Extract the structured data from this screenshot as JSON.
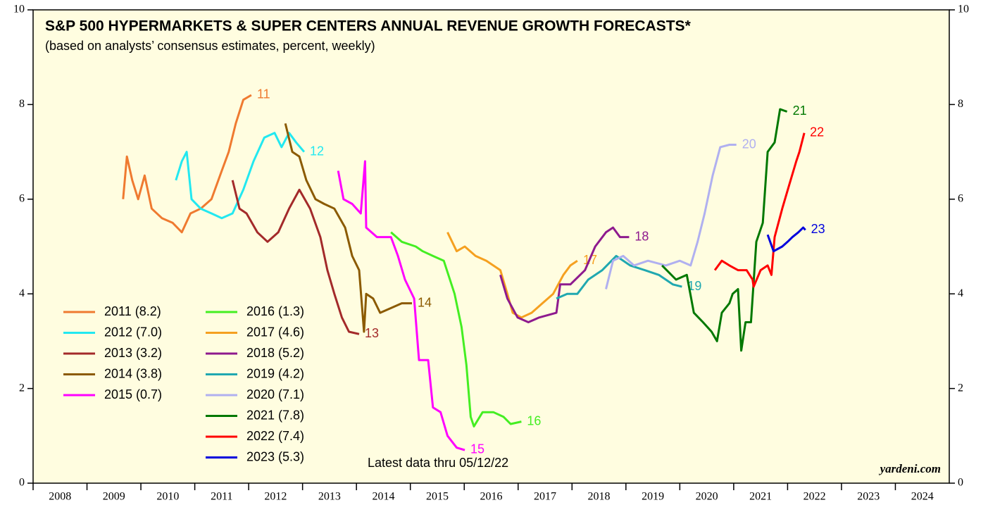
{
  "chart_data": {
    "type": "line",
    "title": "S&P 500 HYPERMARKETS & SUPER CENTERS ANNUAL REVENUE GROWTH FORECASTS*",
    "subtitle": "(based on analysts’ consensus estimates, percent, weekly)",
    "note": "Latest data thru  05/12/22",
    "source": "yardeni.com",
    "xlim": [
      2008,
      2025
    ],
    "xticks": [
      2008,
      2009,
      2010,
      2011,
      2012,
      2013,
      2014,
      2015,
      2016,
      2017,
      2018,
      2019,
      2020,
      2021,
      2022,
      2023,
      2024
    ],
    "ylim": [
      0,
      10
    ],
    "yticks": [
      0,
      2,
      4,
      6,
      8,
      10
    ],
    "series": [
      {
        "name": "2011 (8.2)",
        "end_label": "11",
        "color": "#ef7a30",
        "x": [
          2009.67,
          2009.74,
          2009.84,
          2009.95,
          2010.07,
          2010.2,
          2010.39,
          2010.59,
          2010.76,
          2010.92,
          2011.11,
          2011.31,
          2011.5,
          2011.63,
          2011.76,
          2011.9,
          2012.05
        ],
        "values": [
          6.0,
          6.9,
          6.4,
          6.0,
          6.5,
          5.8,
          5.6,
          5.5,
          5.3,
          5.7,
          5.8,
          6.0,
          6.6,
          7.0,
          7.6,
          8.1,
          8.2
        ]
      },
      {
        "name": "2012 (7.0)",
        "end_label": "12",
        "color": "#22e8f0",
        "x": [
          2010.65,
          2010.76,
          2010.85,
          2010.94,
          2011.11,
          2011.31,
          2011.5,
          2011.7,
          2011.9,
          2012.09,
          2012.29,
          2012.48,
          2012.61,
          2012.75,
          2012.88,
          2013.03
        ],
        "values": [
          6.4,
          6.8,
          7.0,
          6.0,
          5.8,
          5.7,
          5.6,
          5.7,
          6.2,
          6.8,
          7.3,
          7.4,
          7.1,
          7.4,
          7.2,
          7.0
        ]
      },
      {
        "name": "2013 (3.2)",
        "end_label": "13",
        "color": "#a32a2a",
        "x": [
          2011.7,
          2011.83,
          2011.96,
          2012.16,
          2012.35,
          2012.55,
          2012.75,
          2012.94,
          2013.14,
          2013.33,
          2013.46,
          2013.59,
          2013.73,
          2013.86,
          2014.05
        ],
        "values": [
          6.4,
          5.8,
          5.7,
          5.3,
          5.1,
          5.3,
          5.8,
          6.2,
          5.8,
          5.2,
          4.5,
          4.0,
          3.5,
          3.2,
          3.15
        ]
      },
      {
        "name": "2014 (3.8)",
        "end_label": "14",
        "color": "#8b5a00",
        "x": [
          2012.68,
          2012.81,
          2012.94,
          2013.07,
          2013.24,
          2013.4,
          2013.59,
          2013.79,
          2013.92,
          2014.05,
          2014.14,
          2014.18,
          2014.31,
          2014.44,
          2014.64,
          2014.84,
          2015.03
        ],
        "values": [
          7.6,
          7.0,
          6.9,
          6.4,
          6.0,
          5.9,
          5.8,
          5.4,
          4.8,
          4.5,
          3.2,
          4.0,
          3.9,
          3.6,
          3.7,
          3.8,
          3.8
        ]
      },
      {
        "name": "2015 (0.7)",
        "end_label": "15",
        "color": "#ff00ff",
        "x": [
          2013.66,
          2013.76,
          2013.92,
          2014.08,
          2014.16,
          2014.18,
          2014.38,
          2014.64,
          2014.77,
          2014.9,
          2015.07,
          2015.16,
          2015.33,
          2015.42,
          2015.56,
          2015.69,
          2015.86,
          2016.01
        ],
        "values": [
          6.6,
          6.0,
          5.9,
          5.7,
          6.8,
          5.4,
          5.2,
          5.2,
          4.8,
          4.3,
          3.9,
          2.6,
          2.6,
          1.6,
          1.5,
          1.0,
          0.75,
          0.7
        ]
      },
      {
        "name": "2016 (1.3)",
        "end_label": "16",
        "color": "#44ee22",
        "x": [
          2014.64,
          2014.84,
          2015.1,
          2015.23,
          2015.42,
          2015.62,
          2015.82,
          2015.95,
          2016.04,
          2016.12,
          2016.18,
          2016.34,
          2016.54,
          2016.73,
          2016.86,
          2017.06
        ],
        "values": [
          5.3,
          5.1,
          5.0,
          4.9,
          4.8,
          4.7,
          4.0,
          3.3,
          2.5,
          1.4,
          1.2,
          1.5,
          1.5,
          1.4,
          1.25,
          1.3
        ]
      },
      {
        "name": "2017 (4.6)",
        "end_label": "17",
        "color": "#f5a020",
        "x": [
          2015.69,
          2015.86,
          2016.01,
          2016.21,
          2016.41,
          2016.67,
          2016.8,
          2016.9,
          2017.06,
          2017.25,
          2017.45,
          2017.65,
          2017.84,
          2017.97,
          2018.1
        ],
        "values": [
          5.3,
          4.9,
          5.0,
          4.8,
          4.7,
          4.5,
          4.0,
          3.6,
          3.5,
          3.6,
          3.8,
          4.0,
          4.4,
          4.6,
          4.7
        ]
      },
      {
        "name": "2018 (5.2)",
        "end_label": "18",
        "color": "#8e1a8e",
        "x": [
          2016.67,
          2016.8,
          2016.99,
          2017.19,
          2017.39,
          2017.71,
          2017.78,
          2017.97,
          2018.24,
          2018.43,
          2018.63,
          2018.76,
          2018.89,
          2019.06
        ],
        "values": [
          4.4,
          3.9,
          3.5,
          3.4,
          3.5,
          3.6,
          4.2,
          4.2,
          4.5,
          5.0,
          5.3,
          5.4,
          5.2,
          5.2
        ]
      },
      {
        "name": "2019 (4.2)",
        "end_label": "19",
        "color": "#20a8b0",
        "x": [
          2017.71,
          2017.91,
          2018.1,
          2018.3,
          2018.56,
          2018.82,
          2019.08,
          2019.35,
          2019.61,
          2019.87,
          2020.04
        ],
        "values": [
          3.9,
          4.0,
          4.0,
          4.3,
          4.5,
          4.8,
          4.6,
          4.5,
          4.4,
          4.2,
          4.15
        ]
      },
      {
        "name": "2020 (7.1)",
        "end_label": "20",
        "color": "#b0b0f0",
        "x": [
          2018.63,
          2018.76,
          2018.95,
          2019.15,
          2019.41,
          2019.74,
          2020.0,
          2020.2,
          2020.33,
          2020.46,
          2020.61,
          2020.75,
          2020.92,
          2021.05
        ],
        "values": [
          4.1,
          4.7,
          4.8,
          4.6,
          4.7,
          4.6,
          4.7,
          4.6,
          5.1,
          5.7,
          6.5,
          7.1,
          7.15,
          7.15
        ]
      },
      {
        "name": "2021 (7.8)",
        "end_label": "21",
        "color": "#007800",
        "x": [
          2019.67,
          2019.93,
          2020.13,
          2020.26,
          2020.43,
          2020.59,
          2020.69,
          2020.78,
          2020.92,
          2020.98,
          2021.08,
          2021.14,
          2021.22,
          2021.32,
          2021.42,
          2021.54,
          2021.63,
          2021.76,
          2021.86,
          2021.99
        ],
        "values": [
          4.6,
          4.3,
          4.4,
          3.6,
          3.4,
          3.2,
          3.0,
          3.6,
          3.8,
          4.0,
          4.1,
          2.8,
          3.4,
          3.4,
          5.1,
          5.5,
          7.0,
          7.2,
          7.9,
          7.85
        ]
      },
      {
        "name": "2022 (7.4)",
        "end_label": "22",
        "color": "#ff0000",
        "x": [
          2020.65,
          2020.78,
          2020.92,
          2021.08,
          2021.24,
          2021.35,
          2021.37,
          2021.5,
          2021.63,
          2021.7,
          2021.76,
          2021.9,
          2022.03,
          2022.16,
          2022.22,
          2022.31
        ],
        "values": [
          4.5,
          4.7,
          4.6,
          4.5,
          4.5,
          4.3,
          4.15,
          4.5,
          4.6,
          4.4,
          5.2,
          5.8,
          6.3,
          6.8,
          7.0,
          7.4
        ]
      },
      {
        "name": "2023 (5.3)",
        "end_label": "23",
        "color": "#0000dd",
        "x": [
          2021.63,
          2021.74,
          2021.9,
          2022.0,
          2022.09,
          2022.2,
          2022.29,
          2022.33
        ],
        "values": [
          5.25,
          4.9,
          5.0,
          5.1,
          5.2,
          5.3,
          5.4,
          5.35
        ]
      }
    ]
  }
}
